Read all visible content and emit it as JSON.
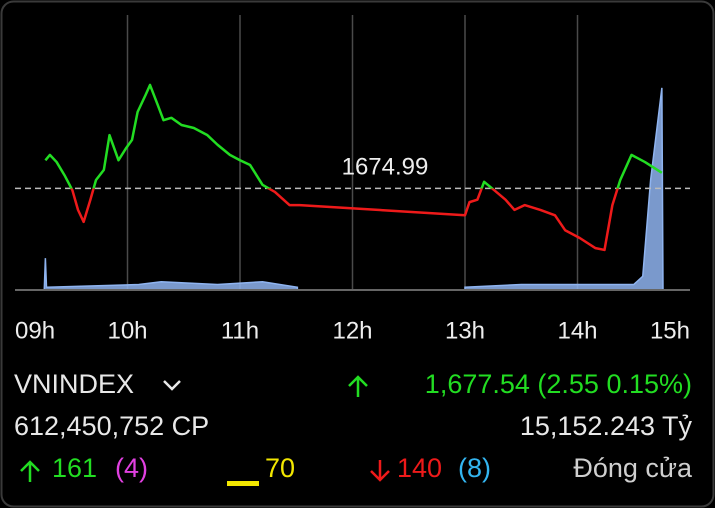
{
  "chart_data": {
    "type": "line",
    "reference": 1674.99,
    "xlim": [
      9,
      15
    ],
    "xticks": [
      {
        "value": 9,
        "label": "09h"
      },
      {
        "value": 10,
        "label": "10h"
      },
      {
        "value": 11,
        "label": "11h"
      },
      {
        "value": 12,
        "label": "12h"
      },
      {
        "value": 13,
        "label": "13h"
      },
      {
        "value": 14,
        "label": "14h"
      },
      {
        "value": 15,
        "label": "15h"
      }
    ],
    "ylim": [
      1658,
      1704
    ],
    "y2lim": [
      0,
      100
    ],
    "grid": true,
    "series": [
      {
        "up_color": "#22dd22",
        "down_color": "#ee1a1a",
        "x": [
          9.27,
          9.31,
          9.37,
          9.44,
          9.51,
          9.56,
          9.61,
          9.67,
          9.72,
          9.79,
          9.84,
          9.92,
          9.99,
          10.04,
          10.09,
          10.16,
          10.2,
          10.27,
          10.32,
          10.39,
          10.48,
          10.59,
          10.71,
          10.8,
          10.91,
          11.0,
          11.09,
          11.2,
          11.31,
          11.44,
          11.53,
          13.0,
          13.04,
          13.11,
          13.17,
          13.26,
          13.36,
          13.44,
          13.53,
          13.67,
          13.8,
          13.89,
          14.02,
          14.16,
          14.24,
          14.31,
          14.38,
          14.48,
          14.6,
          14.75
        ],
        "values": [
          1679.7,
          1680.6,
          1679.4,
          1677.2,
          1674.7,
          1671.4,
          1669.4,
          1673.1,
          1676.4,
          1678.1,
          1683.9,
          1679.7,
          1681.8,
          1683.1,
          1687.8,
          1690.6,
          1692.3,
          1688.9,
          1686.4,
          1686.8,
          1685.6,
          1685.1,
          1683.9,
          1682.3,
          1680.6,
          1679.7,
          1678.9,
          1675.6,
          1674.4,
          1672.2,
          1672.2,
          1670.5,
          1672.7,
          1673.1,
          1676.1,
          1674.7,
          1673.1,
          1671.4,
          1672.2,
          1671.4,
          1670.5,
          1668.0,
          1666.7,
          1665.0,
          1664.7,
          1672.2,
          1676.4,
          1680.6,
          1679.4,
          1677.6
        ]
      },
      {
        "axis": "y2",
        "color": "#8fb4f0",
        "x": [
          9.26,
          9.27,
          9.28,
          10.1,
          10.3,
          10.8,
          11.2,
          11.51,
          12.5,
          13.0,
          13.5,
          14.0,
          14.5,
          14.58,
          14.65,
          14.75,
          14.76
        ],
        "values": [
          0,
          11.6,
          1,
          2,
          3,
          2,
          3,
          1,
          null,
          1,
          2,
          2,
          2,
          5,
          40,
          73.5,
          0
        ]
      }
    ]
  },
  "info": {
    "symbol": "VNINDEX",
    "change": "1,677.54 (2.55 0.15%)",
    "volume": "612,450,752 CP",
    "value": "15,152.243 Tỷ",
    "advances": "161",
    "ceiling": "(4)",
    "unchanged": "70",
    "declines": "140",
    "floor": "(8)",
    "status": "Đóng cửa"
  }
}
